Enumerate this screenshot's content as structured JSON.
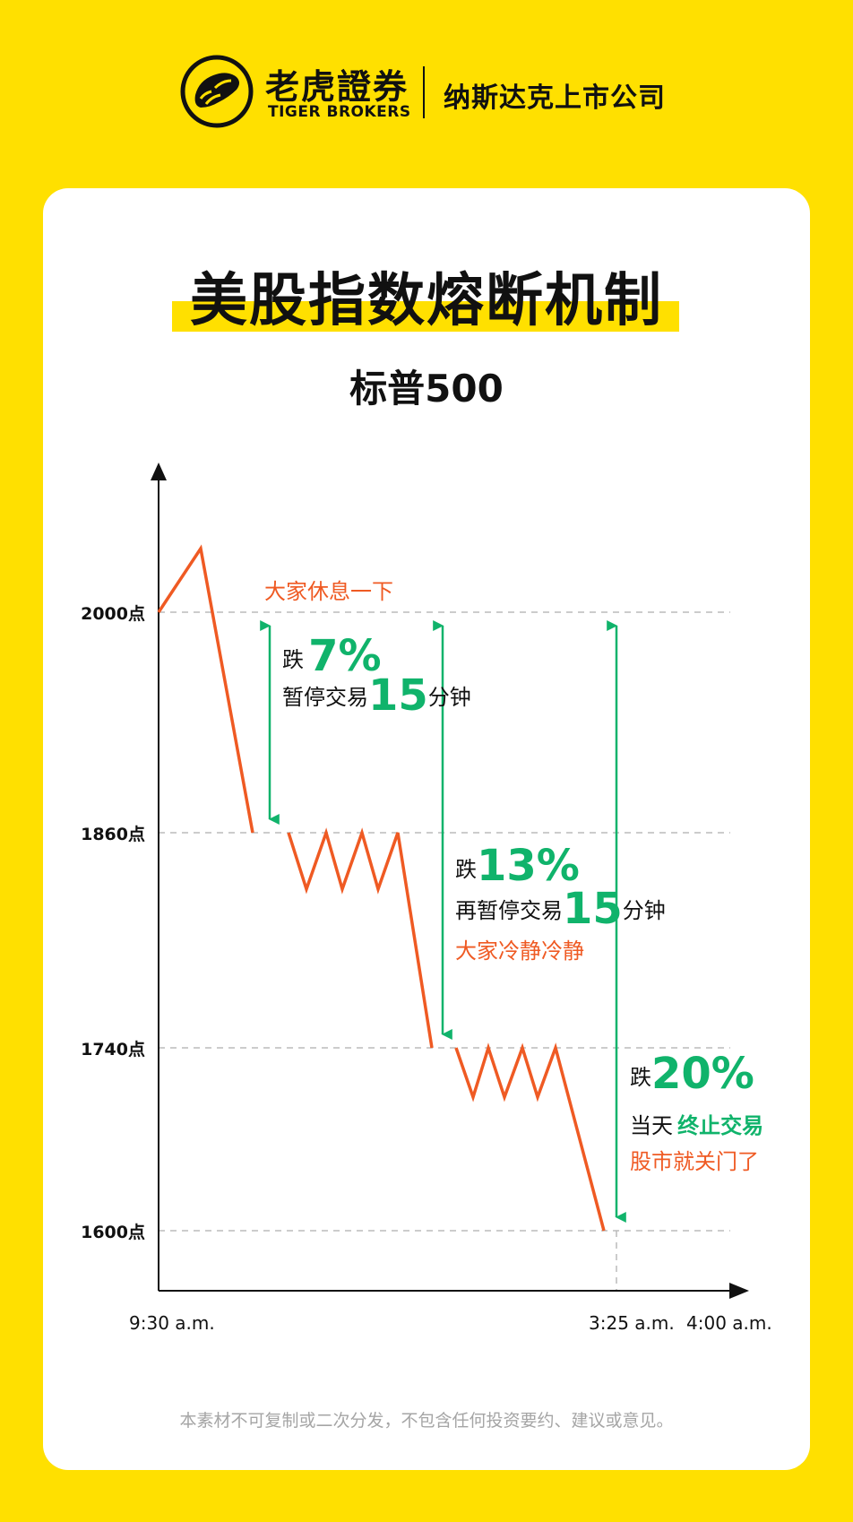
{
  "header": {
    "brand_cn": "老虎證券",
    "brand_en": "TIGER BROKERS",
    "tagline": "纳斯达克上市公司",
    "logo_icon": "tiger-paw-logo-icon"
  },
  "title": "美股指数熔断机制",
  "subtitle": "标普500",
  "chart_data": {
    "type": "line",
    "x_labels": [
      "9:30 a.m.",
      "3:25 a.m.",
      "4:00 a.m."
    ],
    "y_labels": [
      "2000点",
      "1860点",
      "1740点",
      "1600点"
    ],
    "levels": [
      2000,
      1860,
      1740,
      1600
    ],
    "colors": {
      "line": "#EF5A23",
      "arrow": "#10B36B",
      "axis": "#111111",
      "grid": "#BBBBBB"
    }
  },
  "annotations": {
    "level1": {
      "note": "大家休息一下",
      "drop_prefix": "跌",
      "drop_pct": "7%",
      "pause_prefix": "暂停交易",
      "pause_num": "15",
      "pause_unit": "分钟"
    },
    "level2": {
      "drop_prefix": "跌",
      "drop_pct": "13%",
      "pause_prefix": "再暂停交易",
      "pause_num": "15",
      "pause_unit": "分钟",
      "note": "大家冷静冷静"
    },
    "level3": {
      "drop_prefix": "跌",
      "drop_pct": "20%",
      "halt_prefix": "当天",
      "halt_text": "终止交易",
      "note": "股市就关门了"
    }
  },
  "footer": "本素材不可复制或二次分发，不包含任何投资要约、建议或意见。"
}
